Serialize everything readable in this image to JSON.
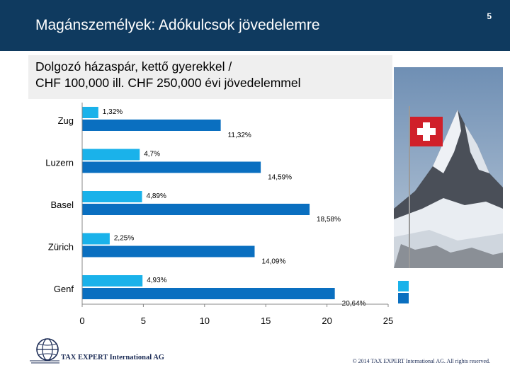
{
  "header": {
    "title": "Magánszemélyek: Adókulcsok jövedelemre",
    "slide_number": "5"
  },
  "subtitle": {
    "line1": "Dolgozó házaspár, kettő gyerekkel /",
    "line2": "CHF 100,000 ill. CHF 250,000 évi jövedelemmel"
  },
  "colors": {
    "header_bg": "#0f3a5f",
    "series_100k": "#1ab2ea",
    "series_250k": "#0a6fc0"
  },
  "chart_data": {
    "type": "bar",
    "orientation": "horizontal",
    "categories": [
      "Zug",
      "Luzern",
      "Basel",
      "Zürich",
      "Genf"
    ],
    "series": [
      {
        "values": [
          1.32,
          4.7,
          4.89,
          2.25,
          4.93
        ],
        "labels": [
          "1,32%",
          "4,7%",
          "4,89%",
          "2,25%",
          "4,93%"
        ],
        "color": "#1ab2ea"
      },
      {
        "values": [
          11.32,
          14.59,
          18.58,
          14.09,
          20.64
        ],
        "labels": [
          "11,32%",
          "14,59%",
          "18,58%",
          "14,09%",
          "20,64%"
        ],
        "color": "#0a6fc0"
      }
    ],
    "xlim": [
      0,
      25
    ],
    "xticks": [
      "0",
      "5",
      "10",
      "15",
      "20",
      "25"
    ],
    "grid": false,
    "legend": "right"
  },
  "footer": {
    "company": "TAX EXPERT International AG",
    "copyright": "© 2014 TAX EXPERT International AG. All rights reserved."
  },
  "icons": {
    "logo": "globe-icon",
    "flag": "swiss-flag-icon"
  }
}
